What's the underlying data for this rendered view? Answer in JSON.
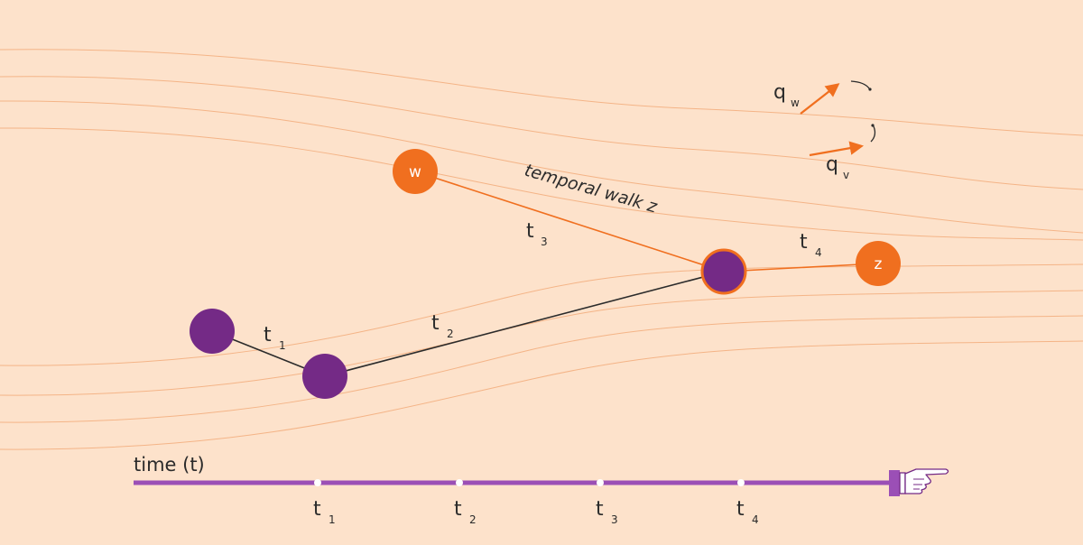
{
  "colors": {
    "background": "#fde2cb",
    "flow_line": "#f4b487",
    "orange": "#f06f1f",
    "purple": "#742a86",
    "timeline": "#9b4fb6",
    "edge_dark": "#2b2b2b"
  },
  "nodes": {
    "w": "w",
    "z": "z"
  },
  "edges": {
    "e1": {
      "t": "t",
      "sub": "1"
    },
    "e2": {
      "t": "t",
      "sub": "2"
    },
    "e3": {
      "t": "t",
      "sub": "3"
    },
    "e4": {
      "t": "t",
      "sub": "4"
    }
  },
  "walk_label": "temporal walk z",
  "vectors": {
    "qw": {
      "q": "q",
      "sub": "w"
    },
    "qv": {
      "q": "q",
      "sub": "v"
    }
  },
  "timeline": {
    "title": "time (t)",
    "ticks": [
      {
        "t": "t",
        "sub": "1"
      },
      {
        "t": "t",
        "sub": "2"
      },
      {
        "t": "t",
        "sub": "3"
      },
      {
        "t": "t",
        "sub": "4"
      }
    ],
    "pointer_icon": "pointing-hand-icon"
  }
}
